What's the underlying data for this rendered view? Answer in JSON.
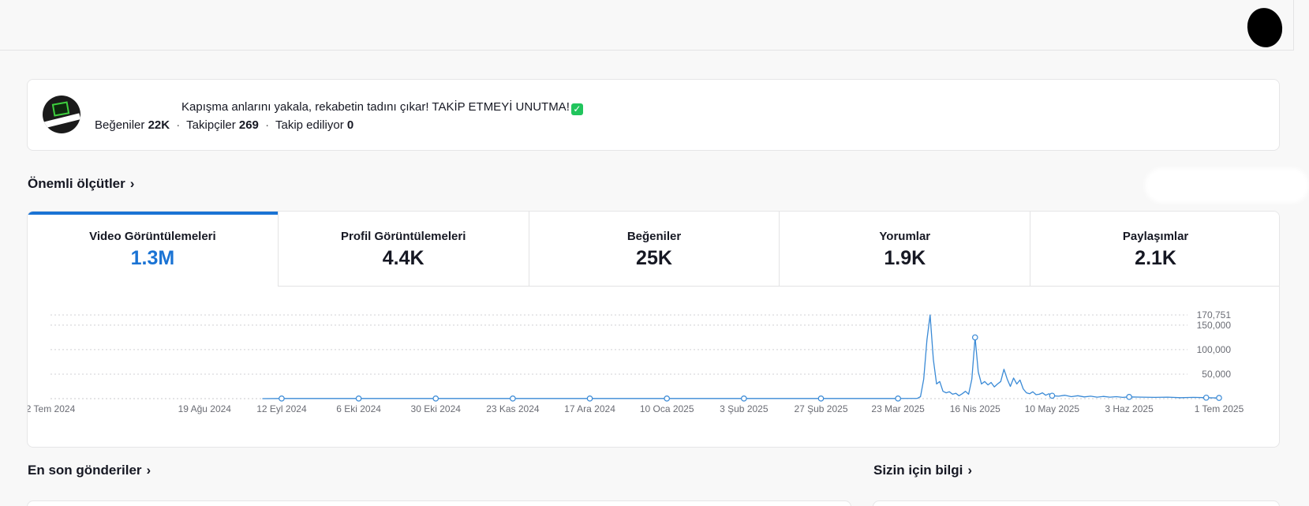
{
  "profile": {
    "bio": "Kapışma anlarını yakala, rekabetin tadını çıkar! TAKİP ETMEYİ UNUTMA!",
    "bio_emoji": "✓",
    "likes_label": "Beğeniler",
    "likes_value": "22K",
    "followers_label": "Takipçiler",
    "followers_value": "269",
    "following_label": "Takip ediliyor",
    "following_value": "0",
    "separator": "·"
  },
  "key_metrics": {
    "title": "Önemli ölçütler",
    "chevron": "›",
    "tabs": [
      {
        "label": "Video Görüntülemeleri",
        "value": "1.3M",
        "active": true
      },
      {
        "label": "Profil Görüntülemeleri",
        "value": "4.4K",
        "active": false
      },
      {
        "label": "Beğeniler",
        "value": "25K",
        "active": false
      },
      {
        "label": "Yorumlar",
        "value": "1.9K",
        "active": false
      },
      {
        "label": "Paylaşımlar",
        "value": "2.1K",
        "active": false
      }
    ]
  },
  "recent_posts": {
    "title": "En son gönderiler",
    "chevron": "›"
  },
  "insights": {
    "title": "Sizin için bilgi",
    "chevron": "›"
  },
  "colors": {
    "accent": "#1a73d4",
    "line": "#3a8ad6"
  },
  "chart_data": {
    "type": "line",
    "ylim": [
      0,
      170751
    ],
    "y_ticks": [
      {
        "value": 170751,
        "label": "170,751"
      },
      {
        "value": 150000,
        "label": "150,000"
      },
      {
        "value": 100000,
        "label": "100,000"
      },
      {
        "value": 50000,
        "label": "50,000"
      }
    ],
    "x_ticks": [
      {
        "day": 0,
        "label": "2 Tem 2024"
      },
      {
        "day": 48,
        "label": "19 Ağu 2024"
      },
      {
        "day": 72,
        "label": "12 Eyl 2024"
      },
      {
        "day": 96,
        "label": "6 Eki 2024"
      },
      {
        "day": 120,
        "label": "30 Eki 2024"
      },
      {
        "day": 144,
        "label": "23 Kas 2024"
      },
      {
        "day": 168,
        "label": "17 Ara 2024"
      },
      {
        "day": 192,
        "label": "10 Oca 2025"
      },
      {
        "day": 216,
        "label": "3 Şub 2025"
      },
      {
        "day": 240,
        "label": "27 Şub 2025"
      },
      {
        "day": 264,
        "label": "23 Mar 2025"
      },
      {
        "day": 288,
        "label": "16 Nis 2025"
      },
      {
        "day": 312,
        "label": "10 May 2025"
      },
      {
        "day": 336,
        "label": "3 Haz 2025"
      },
      {
        "day": 364,
        "label": "1 Tem 2025"
      }
    ],
    "series": [
      {
        "points": [
          [
            66,
            0
          ],
          [
            72,
            300
          ],
          [
            96,
            300
          ],
          [
            120,
            300
          ],
          [
            144,
            300
          ],
          [
            168,
            300
          ],
          [
            192,
            300
          ],
          [
            216,
            300
          ],
          [
            240,
            300
          ],
          [
            264,
            300
          ],
          [
            270,
            500
          ],
          [
            271,
            4000
          ],
          [
            272,
            40000
          ],
          [
            273,
            120000
          ],
          [
            274,
            170751
          ],
          [
            275,
            80000
          ],
          [
            276,
            30000
          ],
          [
            277,
            35000
          ],
          [
            278,
            15000
          ],
          [
            279,
            12000
          ],
          [
            280,
            14000
          ],
          [
            281,
            9000
          ],
          [
            282,
            11000
          ],
          [
            283,
            6000
          ],
          [
            284,
            10000
          ],
          [
            285,
            15000
          ],
          [
            286,
            9000
          ],
          [
            287,
            40000
          ],
          [
            288,
            125000
          ],
          [
            289,
            55000
          ],
          [
            290,
            30000
          ],
          [
            291,
            35000
          ],
          [
            292,
            28000
          ],
          [
            293,
            33000
          ],
          [
            294,
            24000
          ],
          [
            295,
            30000
          ],
          [
            296,
            35000
          ],
          [
            297,
            60000
          ],
          [
            298,
            40000
          ],
          [
            299,
            25000
          ],
          [
            300,
            42000
          ],
          [
            301,
            30000
          ],
          [
            302,
            38000
          ],
          [
            303,
            20000
          ],
          [
            304,
            12000
          ],
          [
            305,
            10000
          ],
          [
            306,
            14000
          ],
          [
            307,
            8000
          ],
          [
            308,
            9000
          ],
          [
            309,
            12000
          ],
          [
            310,
            7000
          ],
          [
            311,
            10000
          ],
          [
            312,
            6000
          ],
          [
            314,
            5000
          ],
          [
            316,
            7000
          ],
          [
            318,
            4000
          ],
          [
            320,
            6000
          ],
          [
            322,
            3500
          ],
          [
            324,
            5000
          ],
          [
            326,
            3000
          ],
          [
            328,
            4500
          ],
          [
            330,
            3000
          ],
          [
            332,
            4000
          ],
          [
            334,
            2500
          ],
          [
            336,
            3500
          ],
          [
            340,
            3000
          ],
          [
            344,
            2500
          ],
          [
            348,
            3000
          ],
          [
            352,
            2000
          ],
          [
            356,
            2500
          ],
          [
            360,
            2000
          ],
          [
            364,
            1500
          ]
        ],
        "markers": [
          72,
          96,
          120,
          144,
          168,
          192,
          216,
          240,
          264,
          288,
          312,
          336,
          360,
          364
        ]
      }
    ]
  }
}
